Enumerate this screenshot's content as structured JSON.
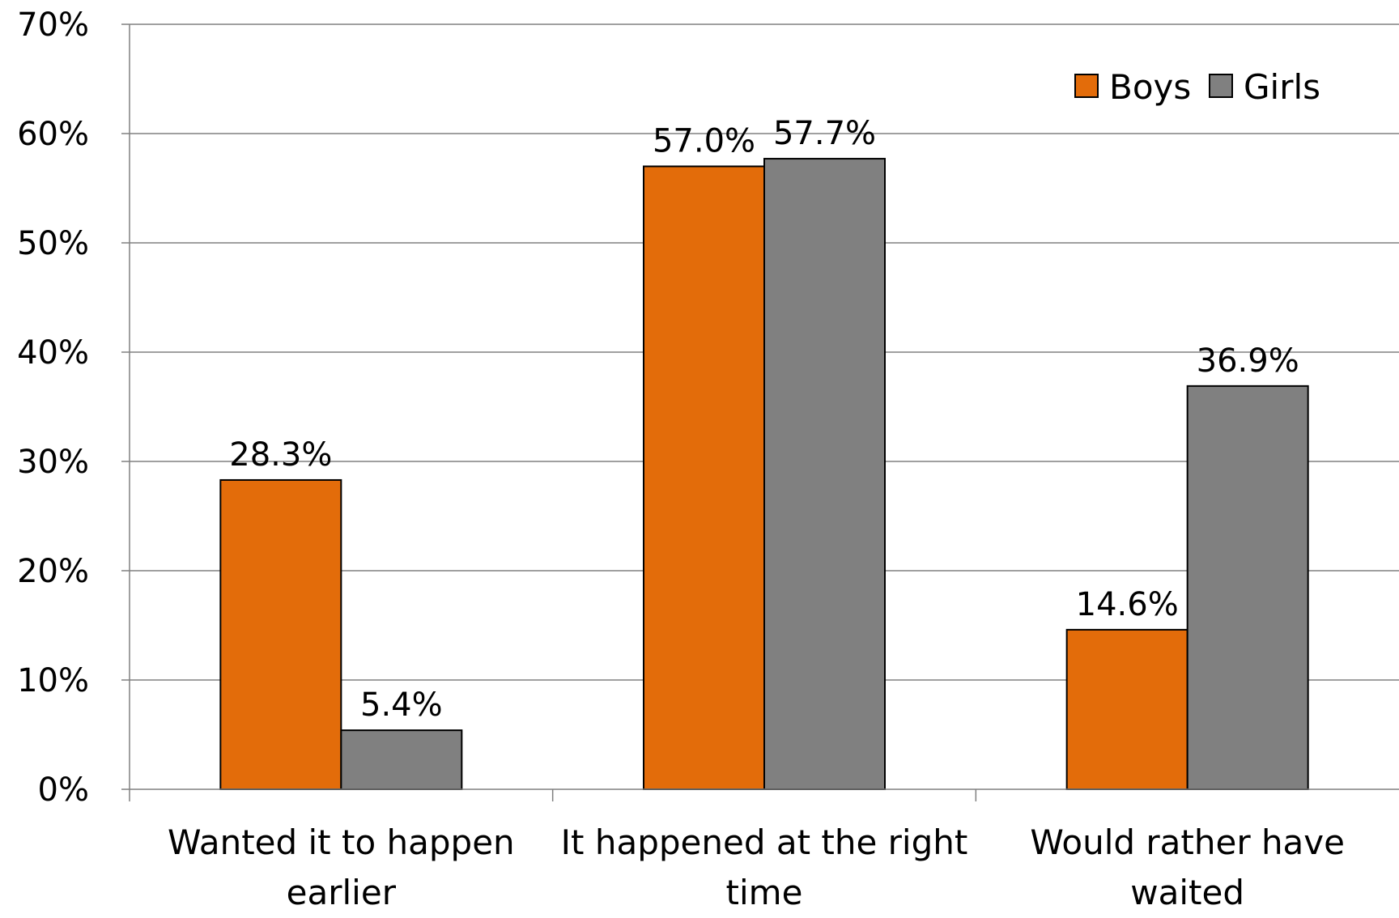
{
  "chart_data": {
    "type": "bar",
    "title": "",
    "xlabel": "",
    "ylabel": "",
    "categories": [
      [
        "Wanted it to happen",
        "earlier"
      ],
      [
        "It happened at the right",
        "time"
      ],
      [
        "Would rather have",
        "waited"
      ]
    ],
    "series": [
      {
        "name": "Boys",
        "color": "#e36c0a",
        "values": [
          28.3,
          57.0,
          14.6
        ],
        "labels": [
          "28.3%",
          "57.0%",
          "14.6%"
        ]
      },
      {
        "name": "Girls",
        "color": "#808080",
        "values": [
          5.4,
          57.7,
          36.9
        ],
        "labels": [
          "5.4%",
          "57.7%",
          "36.9%"
        ]
      }
    ],
    "ylim": [
      0,
      70
    ],
    "yticks": [
      0,
      10,
      20,
      30,
      40,
      50,
      60,
      70
    ],
    "ytick_labels": [
      "0%",
      "10%",
      "20%",
      "30%",
      "40%",
      "50%",
      "60%",
      "70%"
    ],
    "grid": true,
    "legend_position": "top-right",
    "gridline_color": "#808080",
    "bar_outline_color": "#000000"
  }
}
